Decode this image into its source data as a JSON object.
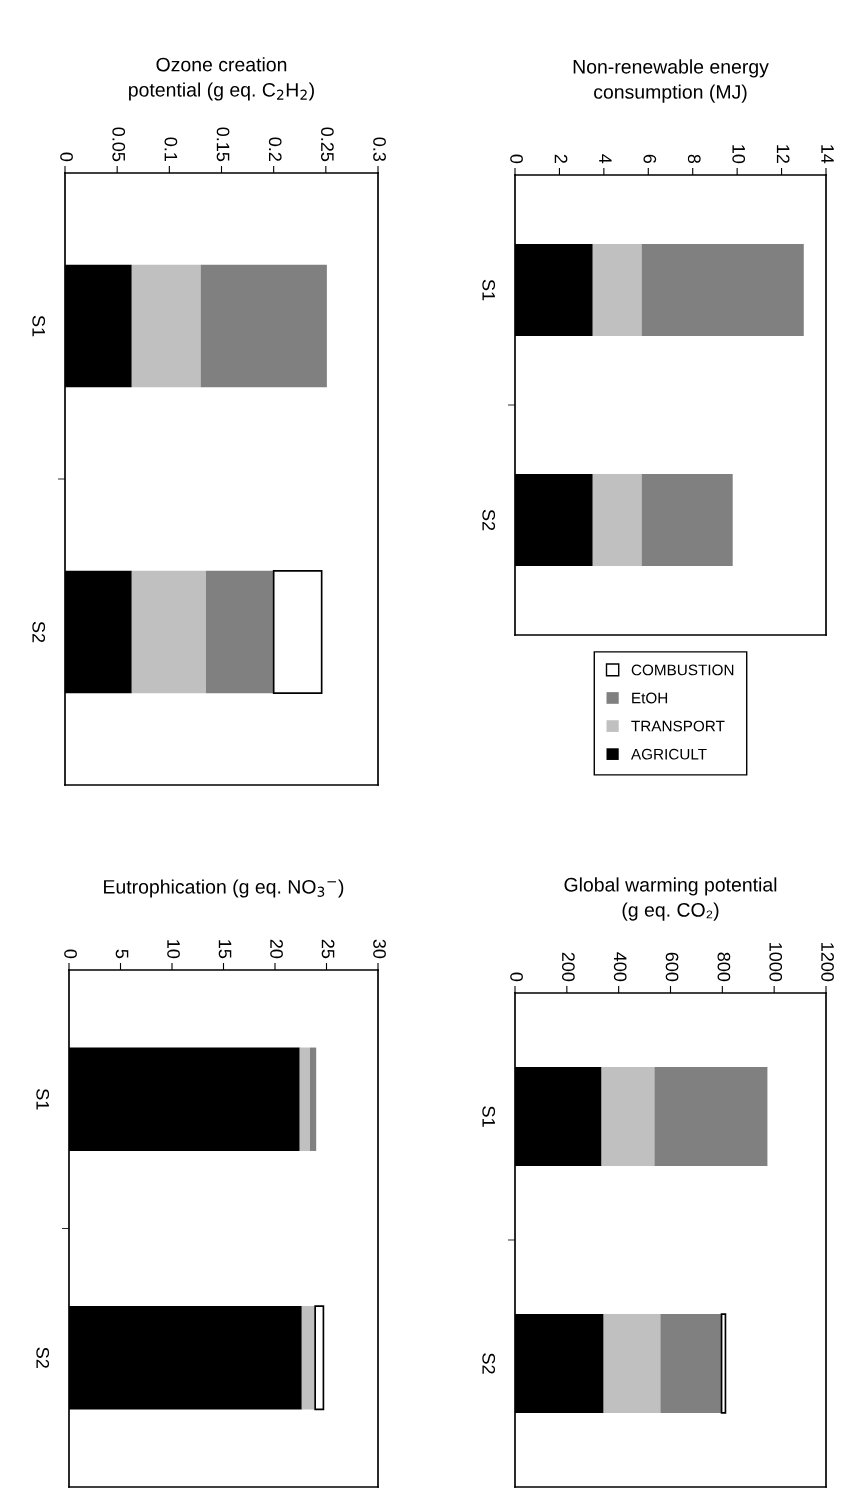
{
  "chart_data": [
    {
      "type": "bar",
      "stacked": true,
      "orientation": "horizontal",
      "title": "Non-renewable energy\nconsumption (MJ)",
      "categories": [
        "S1",
        "S2"
      ],
      "xlim": [
        0,
        14
      ],
      "xticks": [
        0,
        2,
        4,
        6,
        8,
        10,
        12,
        14
      ],
      "legend": "bottom",
      "series": [
        {
          "name": "AGRICULT",
          "color": "#000000",
          "values": [
            3.5,
            3.5
          ]
        },
        {
          "name": "TRANSPORT",
          "color": "#c0c0c0",
          "values": [
            2.2,
            2.2
          ]
        },
        {
          "name": "EtOH",
          "color": "#808080",
          "values": [
            7.3,
            4.1
          ]
        },
        {
          "name": "COMBUSTION",
          "color": "#ffffff",
          "values": [
            null,
            null
          ]
        }
      ]
    },
    {
      "type": "bar",
      "stacked": true,
      "orientation": "horizontal",
      "title": "Global warming potential\n(g eq. CO₂)",
      "categories": [
        "S1",
        "S2"
      ],
      "xlim": [
        0,
        1200
      ],
      "xticks": [
        0,
        200,
        400,
        600,
        800,
        1000,
        1200
      ],
      "series": [
        {
          "color": "#000000",
          "values": [
            334,
            342
          ]
        },
        {
          "color": "#c0c0c0",
          "values": [
            204,
            219
          ]
        },
        {
          "color": "#808080",
          "values": [
            436,
            236
          ]
        },
        {
          "color": "#ffffff",
          "values": [
            null,
            15
          ]
        }
      ]
    },
    {
      "type": "bar",
      "stacked": true,
      "orientation": "horizontal",
      "title": "Ozone creation\npotential (g eq. C$_{2}$H$_{2}$)",
      "categories": [
        "S1",
        "S2"
      ],
      "xlim": [
        0,
        0.3
      ],
      "xticks": [
        0,
        0.05,
        0.1,
        0.15,
        0.2,
        0.25,
        0.3
      ],
      "series": [
        {
          "color": "#000000",
          "values": [
            0.064,
            0.064
          ]
        },
        {
          "color": "#c0c0c0",
          "values": [
            0.066,
            0.071
          ]
        },
        {
          "color": "#808080",
          "values": [
            0.121,
            0.065
          ]
        },
        {
          "color": "#ffffff",
          "values": [
            null,
            0.046
          ]
        }
      ]
    },
    {
      "type": "bar",
      "stacked": true,
      "orientation": "horizontal",
      "title": "Eutrophication (g eq. NO$_{3}$$^{−}$)",
      "categories": [
        "S1",
        "S2"
      ],
      "xlim": [
        0,
        30
      ],
      "xticks": [
        0,
        5,
        10,
        15,
        20,
        25,
        30
      ],
      "series": [
        {
          "color": "#000000",
          "values": [
            22.4,
            22.6
          ]
        },
        {
          "color": "#c0c0c0",
          "values": [
            1.0,
            1.3
          ]
        },
        {
          "color": "#808080",
          "values": [
            0.6,
            null
          ]
        },
        {
          "color": "#ffffff",
          "values": [
            null,
            0.8
          ]
        }
      ]
    }
  ]
}
